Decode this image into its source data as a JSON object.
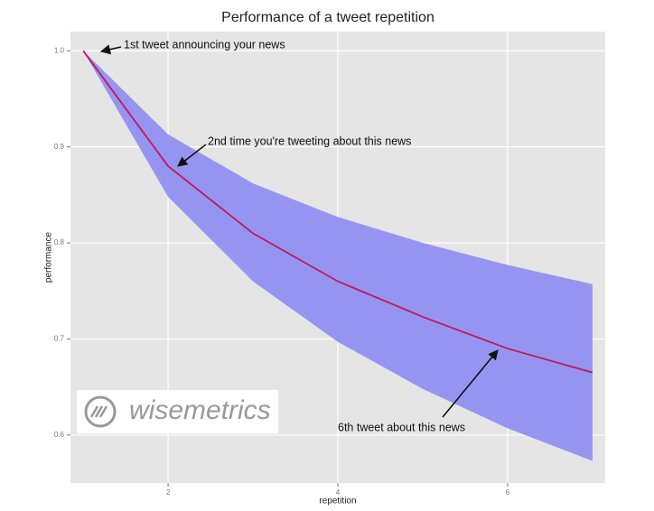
{
  "chart_data": {
    "type": "line",
    "title": "Performance of a tweet repetition",
    "x_label": "repetition",
    "y_label": "performance",
    "x": [
      1,
      2,
      3,
      4,
      5,
      6,
      7
    ],
    "values": [
      1.0,
      0.88,
      0.81,
      0.76,
      0.723,
      0.69,
      0.665
    ],
    "upper": [
      1.0,
      0.913,
      0.862,
      0.827,
      0.8,
      0.777,
      0.757
    ],
    "lower": [
      1.0,
      0.848,
      0.76,
      0.697,
      0.648,
      0.607,
      0.573
    ],
    "color": "#c2185b",
    "band_color": "#8c8cf2",
    "xlim": [
      0.85,
      7.15
    ],
    "xticks": [
      2,
      4,
      6
    ],
    "ylim": [
      0.55,
      1.02
    ],
    "yticks": [
      {
        "value": 1.0,
        "label": "1.0"
      },
      0.9,
      0.8,
      0.7,
      0.6
    ],
    "grid": true,
    "annotations": [
      "1st tweet announcing your news",
      "2nd time you're tweeting about this news",
      "6th tweet about this news"
    ],
    "logo": "wisemetrics"
  }
}
